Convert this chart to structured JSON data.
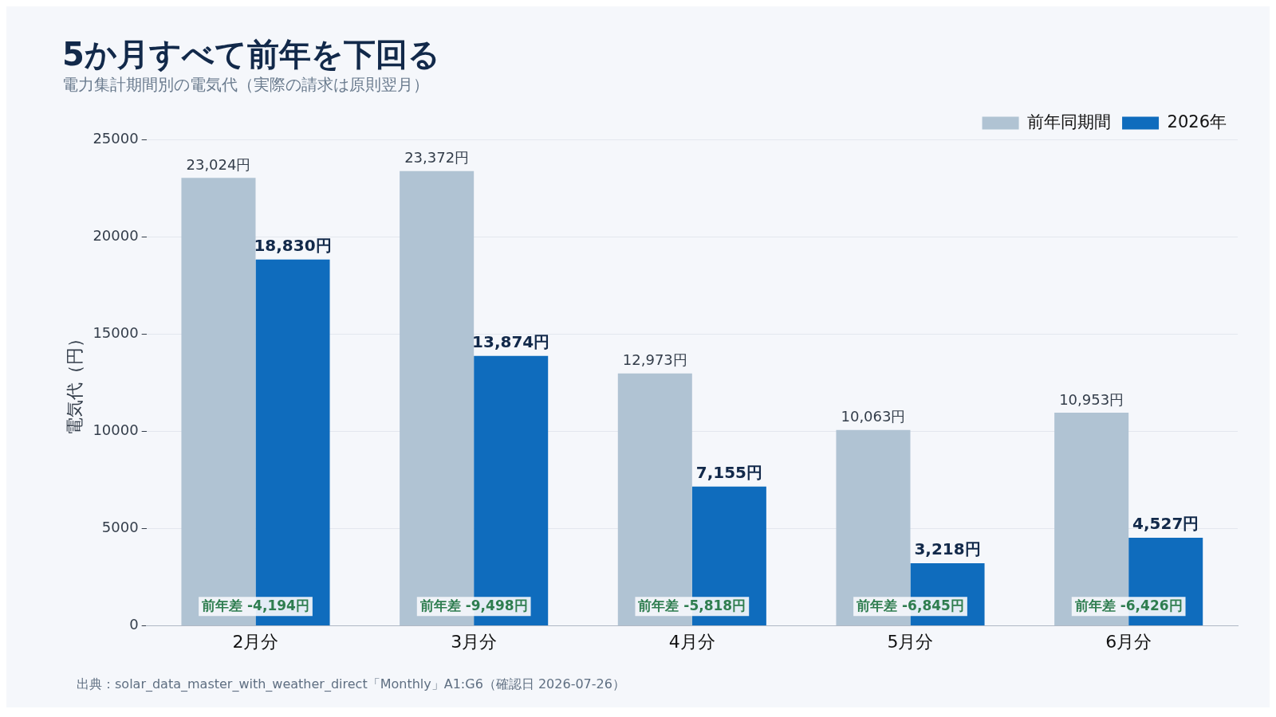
{
  "chart_data": {
    "type": "bar",
    "title": "5か月すべて前年を下回る",
    "subtitle": "電力集計期間別の電気代（実際の請求は原則翌月）",
    "ylabel": "電気代（円）",
    "categories": [
      "2月分",
      "3月分",
      "4月分",
      "5月分",
      "6月分"
    ],
    "series": [
      {
        "name": "前年同期間",
        "color": "#b0c3d3",
        "values": [
          23024,
          23372,
          12973,
          10063,
          10953
        ],
        "value_labels": [
          "23,024円",
          "23,372円",
          "12,973円",
          "10,063円",
          "10,953円"
        ]
      },
      {
        "name": "2026年",
        "color": "#0f6cbd",
        "values": [
          18830,
          13874,
          7155,
          3218,
          4527
        ],
        "value_labels": [
          "18,830円",
          "13,874円",
          "7,155円",
          "3,218円",
          "4,527円"
        ]
      }
    ],
    "ylim": [
      0,
      25000
    ],
    "yticks": [
      0,
      5000,
      10000,
      15000,
      20000,
      25000
    ],
    "grid": "y",
    "legend": "top right",
    "annotations": [
      {
        "text": "前年差 -4,194円",
        "x": "2月分",
        "y": 1000
      },
      {
        "text": "前年差 -9,498円",
        "x": "3月分",
        "y": 1000
      },
      {
        "text": "前年差 -5,818円",
        "x": "4月分",
        "y": 1000
      },
      {
        "text": "前年差 -6,845円",
        "x": "5月分",
        "y": 1000
      },
      {
        "text": "前年差 -6,426円",
        "x": "6月分",
        "y": 1000
      },
      "出典：solar_data_master_with_weather_direct「Monthly」A1:G6（確認日 2026-07-26）"
    ]
  }
}
